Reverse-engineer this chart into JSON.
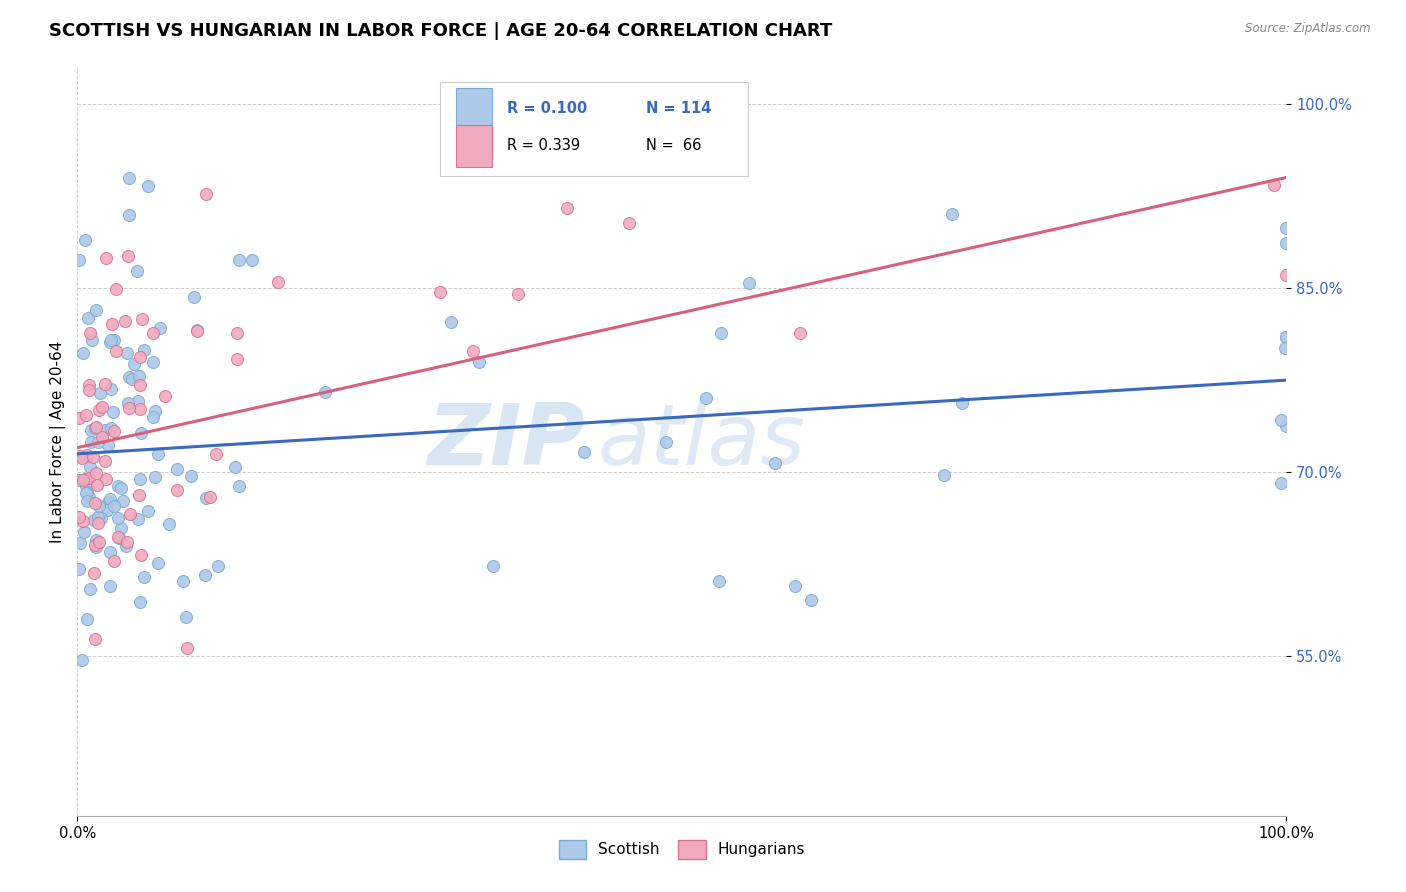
{
  "title": "SCOTTISH VS HUNGARIAN IN LABOR FORCE | AGE 20-64 CORRELATION CHART",
  "source": "Source: ZipAtlas.com",
  "ylabel": "In Labor Force | Age 20-64",
  "xlim": [
    0.0,
    1.0
  ],
  "ylim": [
    0.42,
    1.03
  ],
  "x_ticks": [
    0.0,
    1.0
  ],
  "x_tick_labels": [
    "0.0%",
    "100.0%"
  ],
  "y_ticks": [
    0.55,
    0.7,
    0.85,
    1.0
  ],
  "y_tick_labels": [
    "55.0%",
    "70.0%",
    "85.0%",
    "100.0%"
  ],
  "scottish_color": "#adc8e8",
  "scottish_edge": "#7aaacf",
  "hungarian_color": "#f0aabe",
  "hungarian_edge": "#d97090",
  "scottish_line_color": "#3a6abf",
  "hungarian_line_color": "#d9607a",
  "legend_r_scottish": "R = 0.100",
  "legend_n_scottish": "N = 114",
  "legend_r_hungarian": "R = 0.339",
  "legend_n_hungarian": "N =  66",
  "watermark_zip": "ZIP",
  "watermark_atlas": "atlas",
  "title_fontsize": 13,
  "axis_label_fontsize": 11,
  "tick_fontsize": 10.5,
  "scottish_R": 0.1,
  "scottish_slope": 0.06,
  "scottish_intercept": 0.715,
  "hungarian_R": 0.339,
  "hungarian_slope": 0.22,
  "hungarian_intercept": 0.72
}
